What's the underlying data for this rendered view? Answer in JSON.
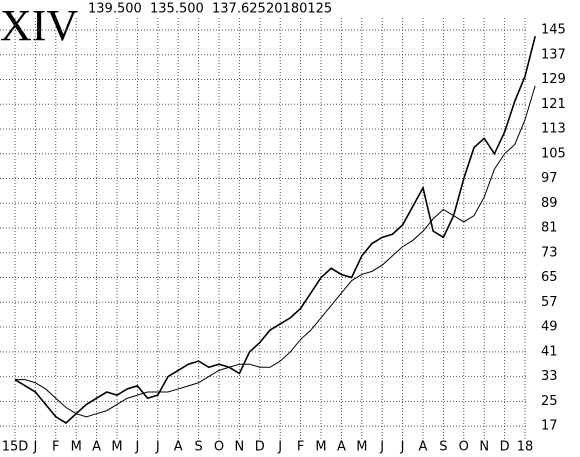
{
  "chart_data": {
    "type": "line",
    "title": "XIV",
    "header": [
      "139.500",
      "135.500",
      "137.625",
      "20180125"
    ],
    "categories": [
      "15D",
      null,
      "J",
      null,
      "F",
      null,
      "M",
      null,
      "A",
      null,
      "M",
      null,
      "J",
      null,
      "J",
      null,
      "A",
      null,
      "S",
      null,
      "O",
      null,
      "N",
      null,
      "D",
      null,
      "J",
      null,
      "F",
      null,
      "M",
      null,
      "A",
      null,
      "M",
      null,
      "J",
      null,
      "J",
      null,
      "A",
      null,
      "S",
      null,
      "O",
      null,
      "N",
      null,
      "D",
      null,
      "18",
      null
    ],
    "series": [
      {
        "color": "#000000",
        "values": [
          32,
          30,
          28,
          24,
          20,
          18,
          21,
          24,
          26,
          28,
          27,
          29,
          30,
          26,
          27,
          33,
          35,
          37,
          38,
          36,
          37,
          36,
          34,
          41,
          44,
          48,
          50,
          52,
          55,
          60,
          65,
          68,
          66,
          65,
          72,
          76,
          78,
          79,
          82,
          88,
          94,
          80,
          78,
          85,
          97,
          107,
          110,
          105,
          112,
          122,
          130,
          143
        ]
      },
      {
        "color": "#000000",
        "values": [
          32,
          32,
          31,
          29,
          26,
          23,
          21,
          20,
          21,
          22,
          24,
          26,
          27,
          28,
          28,
          28,
          29,
          30,
          31,
          33,
          35,
          36,
          37,
          37,
          36,
          36,
          38,
          41,
          45,
          48,
          52,
          56,
          60,
          64,
          66,
          67,
          69,
          72,
          75,
          77,
          80,
          84,
          87,
          85,
          83,
          85,
          91,
          100,
          105,
          108,
          116,
          127
        ]
      }
    ],
    "ylim": [
      12.5,
      154.7
    ],
    "yticks": [
      17,
      25,
      33,
      41,
      49,
      57,
      65,
      73,
      81,
      89,
      97,
      105,
      113,
      121,
      129,
      137,
      145
    ],
    "grid": true
  }
}
